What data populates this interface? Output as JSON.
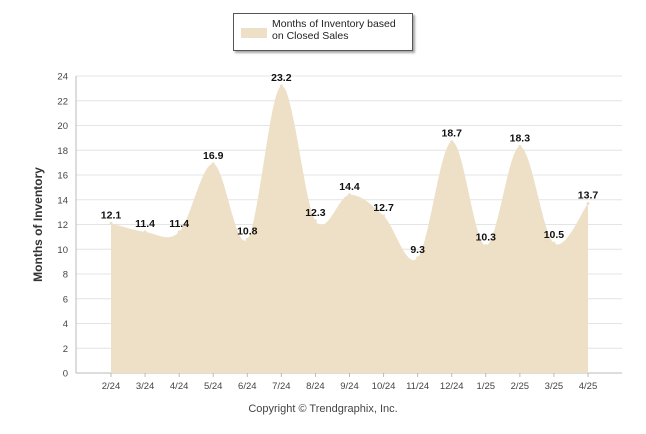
{
  "chart_data": {
    "type": "area",
    "categories": [
      "2/24",
      "3/24",
      "4/24",
      "5/24",
      "6/24",
      "7/24",
      "8/24",
      "9/24",
      "10/24",
      "11/24",
      "12/24",
      "1/25",
      "2/25",
      "3/25",
      "4/25"
    ],
    "series": [
      {
        "name": "Months of Inventory based on Closed Sales",
        "values": [
          12.1,
          11.4,
          11.4,
          16.9,
          10.8,
          23.2,
          12.3,
          14.4,
          12.7,
          9.3,
          18.7,
          10.3,
          18.3,
          10.5,
          13.7
        ],
        "color": "#ede0c6"
      }
    ],
    "ylabel": "Months of Inventory",
    "ylim": [
      0,
      24
    ],
    "yticks": [
      0,
      2,
      4,
      6,
      8,
      10,
      12,
      14,
      16,
      18,
      20,
      22,
      24
    ],
    "grid": true,
    "legend": "top-center",
    "data_labels": [
      "12.1",
      "11.4",
      "11.4",
      "16.9",
      "10.8",
      "23.2",
      "12.3",
      "14.4",
      "12.7",
      "9.3",
      "18.7",
      "10.3",
      "18.3",
      "10.5",
      "13.7"
    ]
  },
  "legend": {
    "label": "Months of Inventory based on Closed Sales"
  },
  "footer": {
    "copyright": "Copyright © Trendgraphix, Inc."
  }
}
